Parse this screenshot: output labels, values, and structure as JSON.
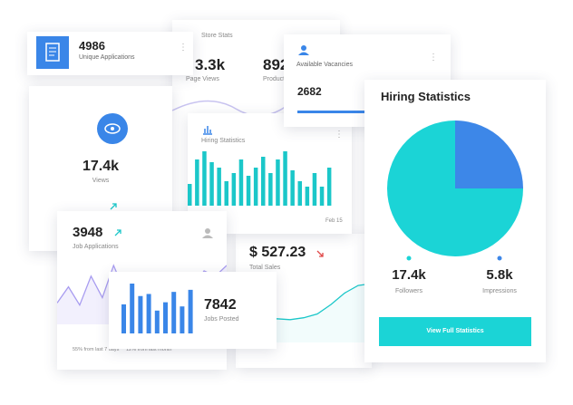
{
  "cards": {
    "applications": {
      "value": "4986",
      "label": "Unique Applications"
    },
    "store_stats": {
      "title": "Store Stats",
      "page_views": "3.3k",
      "page_views_label": "Page Views",
      "products": "892",
      "products_label": "Products"
    },
    "vacancies": {
      "label": "Available Vacancies",
      "value": "2682"
    },
    "views": {
      "value": "17.4k",
      "label": "Views"
    },
    "hiring_small": {
      "title": "Hiring Statistics",
      "bars": [
        8,
        17,
        20,
        16,
        14,
        9,
        12,
        17,
        11,
        14,
        18,
        12,
        17,
        20,
        13,
        9,
        7,
        12,
        7,
        14
      ],
      "date": "Feb 15"
    },
    "hiring": {
      "title": "Hiring Statistics",
      "pie": [
        {
          "value": 75,
          "color": "#1bd4d6"
        },
        {
          "value": 25,
          "color": "#3d87e8"
        }
      ],
      "followers": "17.4k",
      "followers_label": "Followers",
      "impressions": "5.8k",
      "impressions_label": "Impressions",
      "button": "View Full Statistics"
    },
    "sales": {
      "value": "$ 527.23",
      "label": "Total Sales",
      "line": [
        20,
        22,
        24,
        25,
        24,
        26,
        30,
        40,
        52,
        60,
        62
      ]
    },
    "job_applications": {
      "value": "3948",
      "label": "Job Applications",
      "line": [
        20,
        35,
        18,
        45,
        25,
        55,
        30,
        40,
        25,
        38,
        30,
        48,
        35,
        50,
        45,
        55
      ],
      "footer_left": "55% from last 7 days",
      "footer_right": "12% from last month"
    },
    "jobs_posted": {
      "value": "7842",
      "label": "Jobs Posted",
      "bars": [
        28,
        48,
        36,
        38,
        22,
        30,
        40,
        26,
        42
      ]
    }
  }
}
